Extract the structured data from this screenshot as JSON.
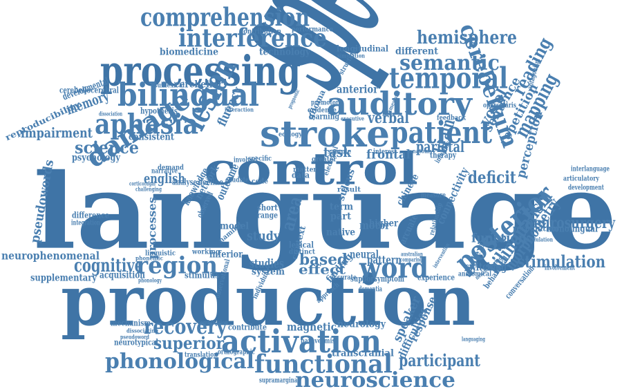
{
  "colors": {
    "word": "#4a7fb0",
    "word_dark": "#3f74a6",
    "background": "#ffffff"
  },
  "words": [
    {
      "id": "language",
      "text": "language"
    },
    {
      "id": "production",
      "text": "production"
    },
    {
      "id": "speech",
      "text": "speech"
    },
    {
      "id": "processing",
      "text": "processing"
    },
    {
      "id": "control",
      "text": "control"
    },
    {
      "id": "comprehension",
      "text": "comprehension"
    },
    {
      "id": "interference",
      "text": "interference"
    },
    {
      "id": "bilingual",
      "text": "bilingual"
    },
    {
      "id": "auditory",
      "text": "auditory"
    },
    {
      "id": "stroke",
      "text": "stroke"
    },
    {
      "id": "patient",
      "text": "patient"
    },
    {
      "id": "temporal",
      "text": "temporal"
    },
    {
      "id": "semantic",
      "text": "semantic"
    },
    {
      "id": "cerebellum",
      "text": "cerebellum"
    },
    {
      "id": "hemisphere",
      "text": "hemisphere"
    },
    {
      "id": "aphasia",
      "text": "aphasia"
    },
    {
      "id": "damage",
      "text": "damage"
    },
    {
      "id": "lesion",
      "text": "lesion"
    },
    {
      "id": "activation",
      "text": "activation"
    },
    {
      "id": "functional",
      "text": "functional"
    },
    {
      "id": "neuroscience",
      "text": "neuroscience"
    },
    {
      "id": "phonological",
      "text": "phonological"
    },
    {
      "id": "posterior",
      "text": "posterior"
    },
    {
      "id": "region",
      "text": "region"
    },
    {
      "id": "word",
      "text": "word"
    },
    {
      "id": "cognitive",
      "text": "cognitive"
    },
    {
      "id": "recovery",
      "text": "recovery"
    },
    {
      "id": "superior",
      "text": "superior"
    },
    {
      "id": "neurosurgery",
      "text": "neurosurgery"
    },
    {
      "id": "stimulation",
      "text": "stimulation"
    },
    {
      "id": "bilingualism",
      "text": "bilingualism"
    },
    {
      "id": "morphometry",
      "text": "morphometry"
    },
    {
      "id": "participant",
      "text": "participant"
    },
    {
      "id": "mapping",
      "text": "mapping"
    },
    {
      "id": "reading",
      "text": "reading"
    },
    {
      "id": "science",
      "text": "science"
    },
    {
      "id": "impairment",
      "text": "impairment"
    },
    {
      "id": "memory",
      "text": "memory"
    },
    {
      "id": "english",
      "text": "english"
    },
    {
      "id": "deficit",
      "text": "deficit"
    },
    {
      "id": "brain",
      "text": "brain"
    },
    {
      "id": "task",
      "text": "task"
    },
    {
      "id": "parietal",
      "text": "parietal"
    },
    {
      "id": "verbal",
      "text": "verbal"
    },
    {
      "id": "voxel",
      "text": "voxel"
    },
    {
      "id": "sentence",
      "text": "sentence"
    },
    {
      "id": "repetition",
      "text": "repetition"
    },
    {
      "id": "perception",
      "text": "perception"
    },
    {
      "id": "pseudowords",
      "text": "pseudowords"
    },
    {
      "id": "neurophenomenal",
      "text": "neurophenomenal"
    },
    {
      "id": "based",
      "text": "based"
    },
    {
      "id": "effect",
      "text": "effect"
    },
    {
      "id": "function",
      "text": "function"
    },
    {
      "id": "area",
      "text": "area"
    },
    {
      "id": "study",
      "text": "study"
    },
    {
      "id": "model",
      "text": "model"
    },
    {
      "id": "processes",
      "text": "processes"
    },
    {
      "id": "magnetic",
      "text": "magnetic"
    },
    {
      "id": "transcranial",
      "text": "transcranial"
    },
    {
      "id": "neurology",
      "text": "neurology"
    },
    {
      "id": "speaker",
      "text": "speaker"
    },
    {
      "id": "response",
      "text": "response"
    },
    {
      "id": "difficulties",
      "text": "difficulties"
    },
    {
      "id": "frontal",
      "text": "frontal"
    },
    {
      "id": "anterior",
      "text": "anterior"
    },
    {
      "id": "different",
      "text": "different"
    },
    {
      "id": "cerebellar",
      "text": "cerebellar"
    },
    {
      "id": "biomedicine",
      "text": "biomedicine"
    },
    {
      "id": "technology",
      "text": "technology"
    },
    {
      "id": "longitudinal",
      "text": "longitudinal"
    },
    {
      "id": "fluency",
      "text": "fluency"
    },
    {
      "id": "studies",
      "text": "studies"
    },
    {
      "id": "system",
      "text": "system"
    },
    {
      "id": "neural",
      "text": "neural"
    },
    {
      "id": "pattern",
      "text": "pattern"
    },
    {
      "id": "motor",
      "text": "motor"
    },
    {
      "id": "higher",
      "text": "higher"
    },
    {
      "id": "native",
      "text": "native"
    },
    {
      "id": "term",
      "text": "term"
    },
    {
      "id": "part",
      "text": "part"
    },
    {
      "id": "connectivity",
      "text": "connectivity"
    },
    {
      "id": "switching",
      "text": "switching"
    },
    {
      "id": "dyslexia",
      "text": "dyslexia"
    },
    {
      "id": "recognition",
      "text": "recognition"
    },
    {
      "id": "monolingual",
      "text": "monolingual"
    },
    {
      "id": "consistent",
      "text": "consistent"
    },
    {
      "id": "psychology",
      "text": "psychology"
    },
    {
      "id": "developmental",
      "text": "developmental"
    },
    {
      "id": "reproducibility",
      "text": "reproducibility"
    },
    {
      "id": "cerebellocerebral",
      "text": "cerebellocerebral"
    },
    {
      "id": "hypothesis",
      "text": "hypothesis"
    },
    {
      "id": "acquisition",
      "text": "acquisition"
    },
    {
      "id": "supplementary",
      "text": "supplementary"
    },
    {
      "id": "difference",
      "text": "difference"
    },
    {
      "id": "mechanism",
      "text": "mechanism"
    },
    {
      "id": "stimulus",
      "text": "stimulus"
    },
    {
      "id": "inferior",
      "text": "inferior"
    },
    {
      "id": "knowledge",
      "text": "knowledge"
    },
    {
      "id": "network",
      "text": "network"
    },
    {
      "id": "outcome",
      "text": "outcome"
    },
    {
      "id": "decline",
      "text": "decline"
    },
    {
      "id": "analyse",
      "text": "analyse"
    },
    {
      "id": "demand",
      "text": "demand"
    },
    {
      "id": "contribution",
      "text": "contribution"
    },
    {
      "id": "performance",
      "text": "performance"
    },
    {
      "id": "simulation",
      "text": "simulation"
    },
    {
      "id": "learning",
      "text": "learning"
    },
    {
      "id": "evidence",
      "text": "evidence"
    },
    {
      "id": "glioma",
      "text": "glioma"
    },
    {
      "id": "sulcus",
      "text": "sulcus"
    },
    {
      "id": "chinese",
      "text": "chinese"
    },
    {
      "id": "finding",
      "text": "finding"
    },
    {
      "id": "context",
      "text": "context"
    },
    {
      "id": "symptom",
      "text": "symptom"
    },
    {
      "id": "support",
      "text": "support"
    },
    {
      "id": "experience",
      "text": "experience"
    },
    {
      "id": "anatomical",
      "text": "anatomical"
    },
    {
      "id": "behavioral",
      "text": "behavioral"
    },
    {
      "id": "conversation",
      "text": "conversation"
    },
    {
      "id": "therapy",
      "text": "therapy"
    },
    {
      "id": "sublexical",
      "text": "sublexical"
    },
    {
      "id": "opercularis",
      "text": "opercularis"
    },
    {
      "id": "antagonism",
      "text": "antagonism"
    },
    {
      "id": "interlanguage",
      "text": "interlanguage"
    },
    {
      "id": "articulatory",
      "text": "articulatory"
    },
    {
      "id": "development",
      "text": "development"
    },
    {
      "id": "involvement",
      "text": "involvement"
    },
    {
      "id": "modulation",
      "text": "modulation"
    },
    {
      "id": "relationship",
      "text": "relationship"
    },
    {
      "id": "arcuate",
      "text": "arcuate"
    },
    {
      "id": "contribute",
      "text": "contribute"
    },
    {
      "id": "neurotypical",
      "text": "neurotypical"
    },
    {
      "id": "translation",
      "text": "translation"
    },
    {
      "id": "orthographic",
      "text": "orthographic"
    },
    {
      "id": "paravermis",
      "text": "paravermis"
    },
    {
      "id": "supramarginal",
      "text": "supramarginal"
    },
    {
      "id": "premotor",
      "text": "premotor"
    },
    {
      "id": "interaction",
      "text": "interaction"
    },
    {
      "id": "specific",
      "text": "specific"
    },
    {
      "id": "involved",
      "text": "involved"
    },
    {
      "id": "caudate",
      "text": "caudate"
    },
    {
      "id": "code",
      "text": "code"
    },
    {
      "id": "result",
      "text": "result"
    },
    {
      "id": "phonemic",
      "text": "phonemic"
    },
    {
      "id": "linguistic",
      "text": "linguistic"
    },
    {
      "id": "working",
      "text": "working"
    },
    {
      "id": "phonology",
      "text": "phonology"
    },
    {
      "id": "narrative",
      "text": "narrative"
    },
    {
      "id": "corticofugal",
      "text": "corticofugal"
    },
    {
      "id": "challenging",
      "text": "challenging"
    },
    {
      "id": "integration",
      "text": "integration"
    },
    {
      "id": "structural",
      "text": "structural"
    },
    {
      "id": "ecology",
      "text": "ecology"
    },
    {
      "id": "sample",
      "text": "sample"
    },
    {
      "id": "interest",
      "text": "interest"
    },
    {
      "id": "feedback",
      "text": "feedback"
    },
    {
      "id": "inference",
      "text": "inference"
    },
    {
      "id": "anatomy",
      "text": "anatomy"
    },
    {
      "id": "greater",
      "text": "greater"
    },
    {
      "id": "matter",
      "text": "matter"
    },
    {
      "id": "data",
      "text": "data"
    },
    {
      "id": "observed",
      "text": "observed"
    },
    {
      "id": "naming",
      "text": "naming"
    },
    {
      "id": "short",
      "text": "short"
    },
    {
      "id": "range",
      "text": "range"
    },
    {
      "id": "lexical",
      "text": "lexical"
    },
    {
      "id": "distinct",
      "text": "distinct"
    },
    {
      "id": "electrical",
      "text": "electrical"
    },
    {
      "id": "measure",
      "text": "measure"
    },
    {
      "id": "accurate",
      "text": "accurate"
    },
    {
      "id": "dementia",
      "text": "dementia"
    },
    {
      "id": "dissociating",
      "text": "dissociating"
    },
    {
      "id": "pseudoword",
      "text": "pseudoword"
    },
    {
      "id": "combination",
      "text": "combination"
    },
    {
      "id": "observational",
      "text": "observational"
    },
    {
      "id": "individual",
      "text": "individual"
    },
    {
      "id": "approach",
      "text": "approach"
    },
    {
      "id": "languaging",
      "text": "languaging"
    },
    {
      "id": "neuroimaging",
      "text": "neuroimaging"
    },
    {
      "id": "australian",
      "text": "australian"
    },
    {
      "id": "comparing",
      "text": "comparing"
    },
    {
      "id": "intervention",
      "text": "intervention"
    },
    {
      "id": "dissociation",
      "text": "dissociation"
    },
    {
      "id": "executive",
      "text": "executive"
    },
    {
      "id": "prognostic",
      "text": "prognostic"
    },
    {
      "id": "framework",
      "text": "framework"
    }
  ]
}
